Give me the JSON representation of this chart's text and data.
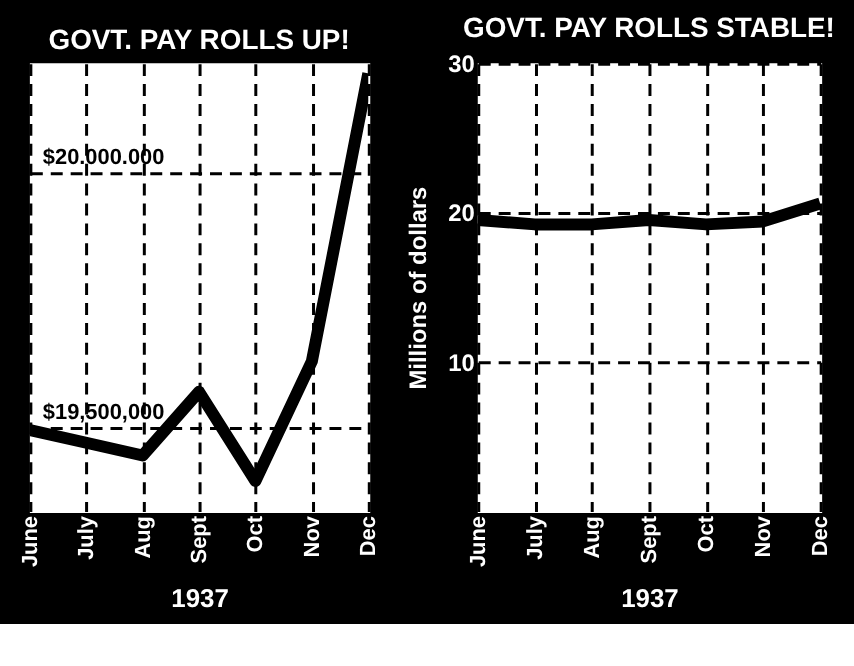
{
  "chart_data": [
    {
      "type": "line",
      "title": "GOVT. PAY ROLLS UP!",
      "xlabel": "1937",
      "categories": [
        "June",
        "July",
        "Aug",
        "Sept",
        "Oct",
        "Nov",
        "Dec"
      ],
      "series": [
        {
          "color": "#000000",
          "values": [
            19495000,
            19470000,
            19445000,
            19570000,
            19395000,
            19630000,
            20195000
          ]
        }
      ],
      "ylim": [
        19336000,
        20215000
      ],
      "yticks": [
        {
          "value": 19500000,
          "label": "$19,500,000"
        },
        {
          "value": 20000000,
          "label": "$20.000.000"
        }
      ],
      "grid": true,
      "line_style": "solid",
      "marker": "none"
    },
    {
      "type": "line",
      "title": "GOVT. PAY ROLLS STABLE!",
      "xlabel": "1937",
      "ylabel": "Millions of dollars",
      "categories": [
        "June",
        "July",
        "Aug",
        "Sept",
        "Oct",
        "Nov",
        "Dec"
      ],
      "series": [
        {
          "color": "#000000",
          "values": [
            19.5,
            19.2,
            19.2,
            19.5,
            19.2,
            19.4,
            20.6
          ]
        }
      ],
      "ylim": [
        0,
        30
      ],
      "yticks": [
        10,
        20,
        30
      ],
      "grid": true,
      "line_style": "solid",
      "marker": "none"
    }
  ]
}
